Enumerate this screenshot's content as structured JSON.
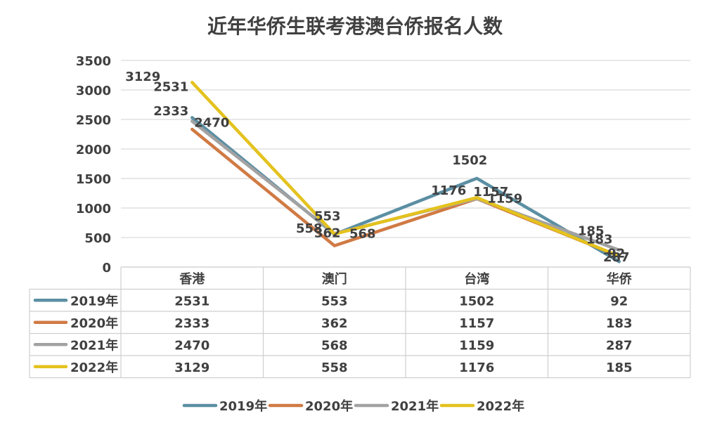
{
  "chart_data": {
    "type": "line",
    "title": "近年华侨生联考港澳台侨报名人数",
    "categories": [
      "香港",
      "澳门",
      "台湾",
      "华侨"
    ],
    "ylim": [
      0,
      3500
    ],
    "yticks": [
      "0",
      "500",
      "1000",
      "1500",
      "2000",
      "2500",
      "3000",
      "3500"
    ],
    "grid": true,
    "legend_position": "bottom",
    "has_data_table": true,
    "series": [
      {
        "name": "2019年",
        "color": "#5b8fa3",
        "values": [
          2531,
          553,
          1502,
          92
        ]
      },
      {
        "name": "2020年",
        "color": "#d07a44",
        "values": [
          2333,
          362,
          1157,
          183
        ]
      },
      {
        "name": "2021年",
        "color": "#a2a2a2",
        "values": [
          2470,
          568,
          1159,
          287
        ]
      },
      {
        "name": "2022年",
        "color": "#e4c21e",
        "values": [
          3129,
          558,
          1176,
          185
        ]
      }
    ]
  },
  "colors": {
    "grid": "#d9d9d9",
    "text": "#404040",
    "table_border": "#cfcfcf"
  }
}
